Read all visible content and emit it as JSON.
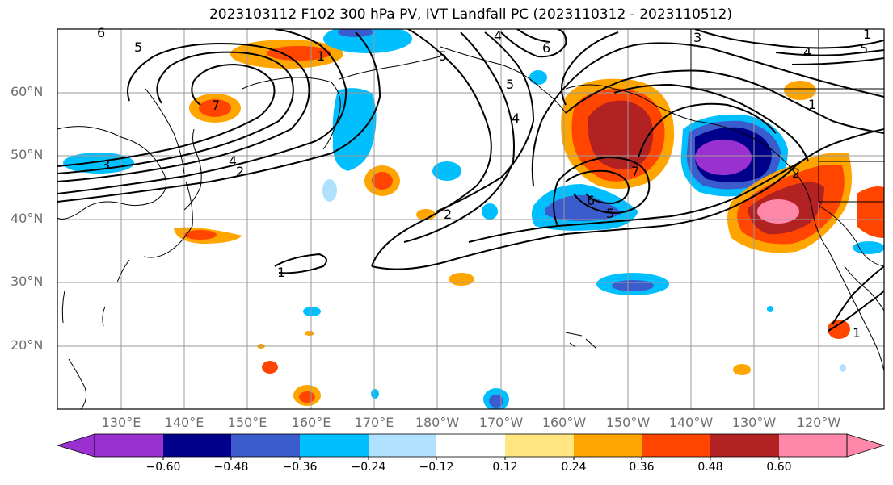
{
  "title": "2023103112 F102 300 hPa PV, IVT Landfall PC (2023110312 - 2023110512)",
  "lat_labels": [
    "60°N",
    "50°N",
    "40°N",
    "30°N",
    "20°N"
  ],
  "lon_labels": [
    "130°E",
    "140°E",
    "150°E",
    "160°E",
    "170°E",
    "180°W",
    "170°W",
    "160°W",
    "150°W",
    "140°W",
    "130°W",
    "120°W"
  ],
  "colorbar": {
    "ticks": [
      "−0.60",
      "−0.48",
      "−0.36",
      "−0.24",
      "−0.12",
      "0.12",
      "0.24",
      "0.36",
      "0.48",
      "0.60"
    ],
    "colors": [
      "#9b30d0",
      "#00008b",
      "#3a5ccc",
      "#00bfff",
      "#b0e2ff",
      "#ffffff",
      "#ffe680",
      "#ffa500",
      "#ff4500",
      "#b22222",
      "#ff88aa"
    ]
  },
  "contour_labels": [
    "6",
    "5",
    "4",
    "3",
    "2",
    "1",
    "1",
    "2",
    "4",
    "5",
    "6",
    "5",
    "4",
    "7",
    "6",
    "5",
    "7",
    "2",
    "1",
    "3",
    "4",
    "5",
    "1",
    "1"
  ]
}
